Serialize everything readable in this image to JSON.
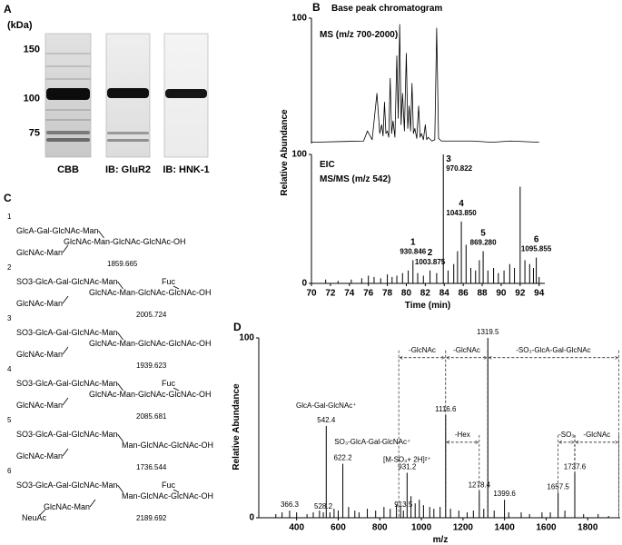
{
  "panel_labels": [
    "A",
    "B",
    "C",
    "D"
  ],
  "gel": {
    "type": "gel",
    "unit_label": "(kDa)",
    "log_scale": true,
    "ylim": [
      62,
      171
    ],
    "yticks": [
      150,
      100,
      75
    ],
    "lanes": [
      "CBB",
      "IB: GluR2",
      "IB: HNK-1"
    ]
  },
  "chart_data": [
    {
      "type": "line",
      "title": "Base peak chromatogram",
      "subtitle": "MS (m/z 700-2000)",
      "color": "#000000",
      "xlim": [
        70,
        94.6
      ],
      "ylim": [
        0,
        100
      ],
      "yticks": [
        100
      ],
      "x": [
        70,
        75.5,
        75.9,
        76.4,
        76.9,
        77.2,
        77.4,
        77.55,
        77.7,
        77.85,
        78.0,
        78.15,
        78.3,
        78.45,
        78.6,
        78.8,
        79.0,
        79.15,
        79.3,
        79.45,
        79.6,
        79.8,
        80.0,
        80.15,
        80.3,
        80.45,
        80.6,
        80.75,
        80.9,
        81.1,
        81.3,
        81.45,
        81.6,
        81.8,
        82.0,
        82.15,
        82.3,
        82.7,
        83.0,
        83.2,
        83.4,
        83.7,
        85,
        87,
        89,
        91,
        94
      ],
      "values": [
        1,
        2,
        10,
        3,
        40,
        8,
        15,
        6,
        33,
        8,
        10,
        5,
        52,
        8,
        18,
        5,
        70,
        20,
        95,
        15,
        40,
        10,
        72,
        12,
        30,
        10,
        48,
        8,
        12,
        4,
        30,
        5,
        8,
        3,
        15,
        3,
        5,
        2,
        3,
        92,
        4,
        2,
        2,
        2,
        1,
        2,
        1
      ]
    },
    {
      "type": "stick",
      "title": "EIC",
      "subtitle": "MS/MS (m/z 542)",
      "xlabel": "Time (min)",
      "ylabel": "Relative Abundance",
      "color": "#000000",
      "xlim": [
        70,
        94.6
      ],
      "xticks": [
        70,
        72,
        74,
        76,
        78,
        80,
        82,
        84,
        86,
        88,
        90,
        92,
        94
      ],
      "ylim": [
        0,
        100
      ],
      "yticks": [
        0,
        100
      ],
      "x": [
        71.5,
        72.8,
        74.2,
        75.3,
        76.0,
        76.6,
        77.3,
        78.0,
        78.5,
        79.0,
        79.6,
        80.2,
        80.7,
        81.2,
        81.8,
        82.5,
        83.2,
        83.9,
        84.4,
        85.0,
        85.4,
        85.8,
        86.3,
        86.8,
        87.3,
        87.7,
        88.1,
        88.6,
        89.2,
        89.7,
        90.3,
        90.9,
        91.4,
        92.0,
        92.5,
        93.0,
        93.4,
        93.7,
        94.0
      ],
      "values": [
        3,
        2,
        3,
        4,
        6,
        5,
        4,
        7,
        5,
        6,
        8,
        10,
        18,
        8,
        6,
        10,
        8,
        100,
        10,
        15,
        25,
        48,
        30,
        12,
        10,
        18,
        25,
        10,
        12,
        8,
        10,
        15,
        12,
        75,
        18,
        15,
        12,
        20,
        5
      ],
      "annotations": [
        {
          "number": "1",
          "text": "930.846",
          "x": 80.7,
          "y": 18
        },
        {
          "number": "2",
          "text": "1003.875",
          "x": 82.5,
          "y": 10
        },
        {
          "number": "3",
          "text": "970.822",
          "x": 83.9,
          "y": 100
        },
        {
          "number": "4",
          "text": "1043.850",
          "x": 85.8,
          "y": 48
        },
        {
          "number": "5",
          "text": "869.280",
          "x": 88.1,
          "y": 25
        },
        {
          "number": "6",
          "text": "1095.855",
          "x": 93.7,
          "y": 20
        }
      ]
    },
    {
      "type": "stick",
      "xlabel": "m/z",
      "ylabel": "Relative Abundance",
      "color": "#000000",
      "xlim": [
        218,
        1956
      ],
      "xticks": [
        400,
        600,
        800,
        1000,
        1200,
        1400,
        1600,
        1800
      ],
      "ylim": [
        0,
        100
      ],
      "yticks": [
        0,
        100
      ],
      "x": [
        300,
        330,
        366.3,
        400,
        450,
        480,
        510,
        528.2,
        542.4,
        560,
        580,
        600,
        622.2,
        650,
        680,
        700,
        740,
        780,
        820,
        850,
        880,
        900,
        913.5,
        931.2,
        950,
        970,
        990,
        1010,
        1040,
        1060,
        1090,
        1116.6,
        1140,
        1180,
        1220,
        1250,
        1278.4,
        1300,
        1319.5,
        1350,
        1399.6,
        1420,
        1480,
        1520,
        1580,
        1620,
        1657.5,
        1690,
        1737.6,
        1780,
        1850,
        1900
      ],
      "values": [
        2,
        3,
        4,
        3,
        2,
        3,
        4,
        3,
        51,
        3,
        5,
        4,
        30,
        6,
        4,
        3,
        5,
        4,
        6,
        5,
        7,
        6,
        4,
        25,
        12,
        8,
        10,
        7,
        6,
        5,
        6,
        57,
        5,
        4,
        3,
        4,
        15,
        5,
        100,
        4,
        10,
        3,
        3,
        2,
        3,
        3,
        14,
        4,
        25,
        2,
        2,
        1
      ],
      "peak_labels": [
        null,
        null,
        "366.3",
        null,
        null,
        null,
        null,
        "528.2",
        "542.4",
        null,
        null,
        null,
        "622.2",
        null,
        null,
        null,
        null,
        null,
        null,
        null,
        null,
        null,
        "913.5",
        "931.2",
        null,
        null,
        null,
        null,
        null,
        null,
        null,
        "1116.6",
        null,
        null,
        null,
        null,
        "1278.4",
        null,
        "1319.5",
        null,
        "1399.6",
        null,
        null,
        null,
        null,
        null,
        "1657.5",
        null,
        "1737.6",
        null,
        null,
        null
      ],
      "notes": [
        {
          "text": "GlcA-Gal-GlcNAc⁺",
          "x": 542.4,
          "y": 61
        },
        {
          "text": "SO₃-GlcA-Gal-GlcNAc⁺",
          "x": 765,
          "y": 41
        },
        {
          "text": "[M-SO₃+ 2H]²⁺",
          "x": 931.2,
          "y": 31
        }
      ],
      "arrows": [
        {
          "text": "-GlcNAc",
          "from": 891,
          "to": 1116.6,
          "y": 89
        },
        {
          "text": "-GlcNAc",
          "from": 1116.6,
          "to": 1319.5,
          "y": 89
        },
        {
          "text": "-SO₃-GlcA-Gal-GlcNAc",
          "from": 1319.5,
          "to": 1950,
          "y": 89
        },
        {
          "text": "-Hex",
          "from": 1116.6,
          "to": 1278.4,
          "y": 42
        },
        {
          "text": "-SO₃",
          "from": 1657.5,
          "to": 1737.6,
          "y": 42
        },
        {
          "text": "-GlcNAc",
          "from": 1737.6,
          "to": 1950,
          "y": 42
        }
      ]
    }
  ],
  "structures": [
    {
      "number": "1",
      "antenna1": "GlcA-Gal-GlcNAc-Man",
      "core": "GlcNAc-Man-GlcNAc-GlcNAc-OH",
      "antenna2": "GlcNAc-Man",
      "mass": 1859.665
    },
    {
      "number": "2",
      "antenna1": "SO3-GlcA-Gal-GlcNAc-Man",
      "fuc": "Fuc",
      "core": "GlcNAc-Man-GlcNAc-GlcNAc-OH",
      "antenna2": "GlcNAc-Man",
      "mass": 2005.724
    },
    {
      "number": "3",
      "antenna1": "SO3-GlcA-Gal-GlcNAc-Man",
      "core": "GlcNAc-Man-GlcNAc-GlcNAc-OH",
      "antenna2": "GlcNAc-Man",
      "mass": 1939.623
    },
    {
      "number": "4",
      "antenna1": "SO3-GlcA-Gal-GlcNAc-Man",
      "fuc": "Fuc",
      "core": "GlcNAc-Man-GlcNAc-GlcNAc-OH",
      "antenna2": "GlcNAc-Man",
      "mass": 2085.681
    },
    {
      "number": "5",
      "antenna1": "SO3-GlcA-Gal-GlcNAc-Man",
      "core": "Man-GlcNAc-GlcNAc-OH",
      "antenna2": "GlcNAc-Man",
      "mass": 1736.544
    },
    {
      "number": "6",
      "antenna1": "SO3-GlcA-Gal-GlcNAc-Man",
      "fuc": "Fuc",
      "core": "Man-GlcNAc-GlcNAc-OH",
      "antenna2": "GlcNAc-Man",
      "neuac": "NeuAc",
      "mass": 2189.692
    }
  ]
}
